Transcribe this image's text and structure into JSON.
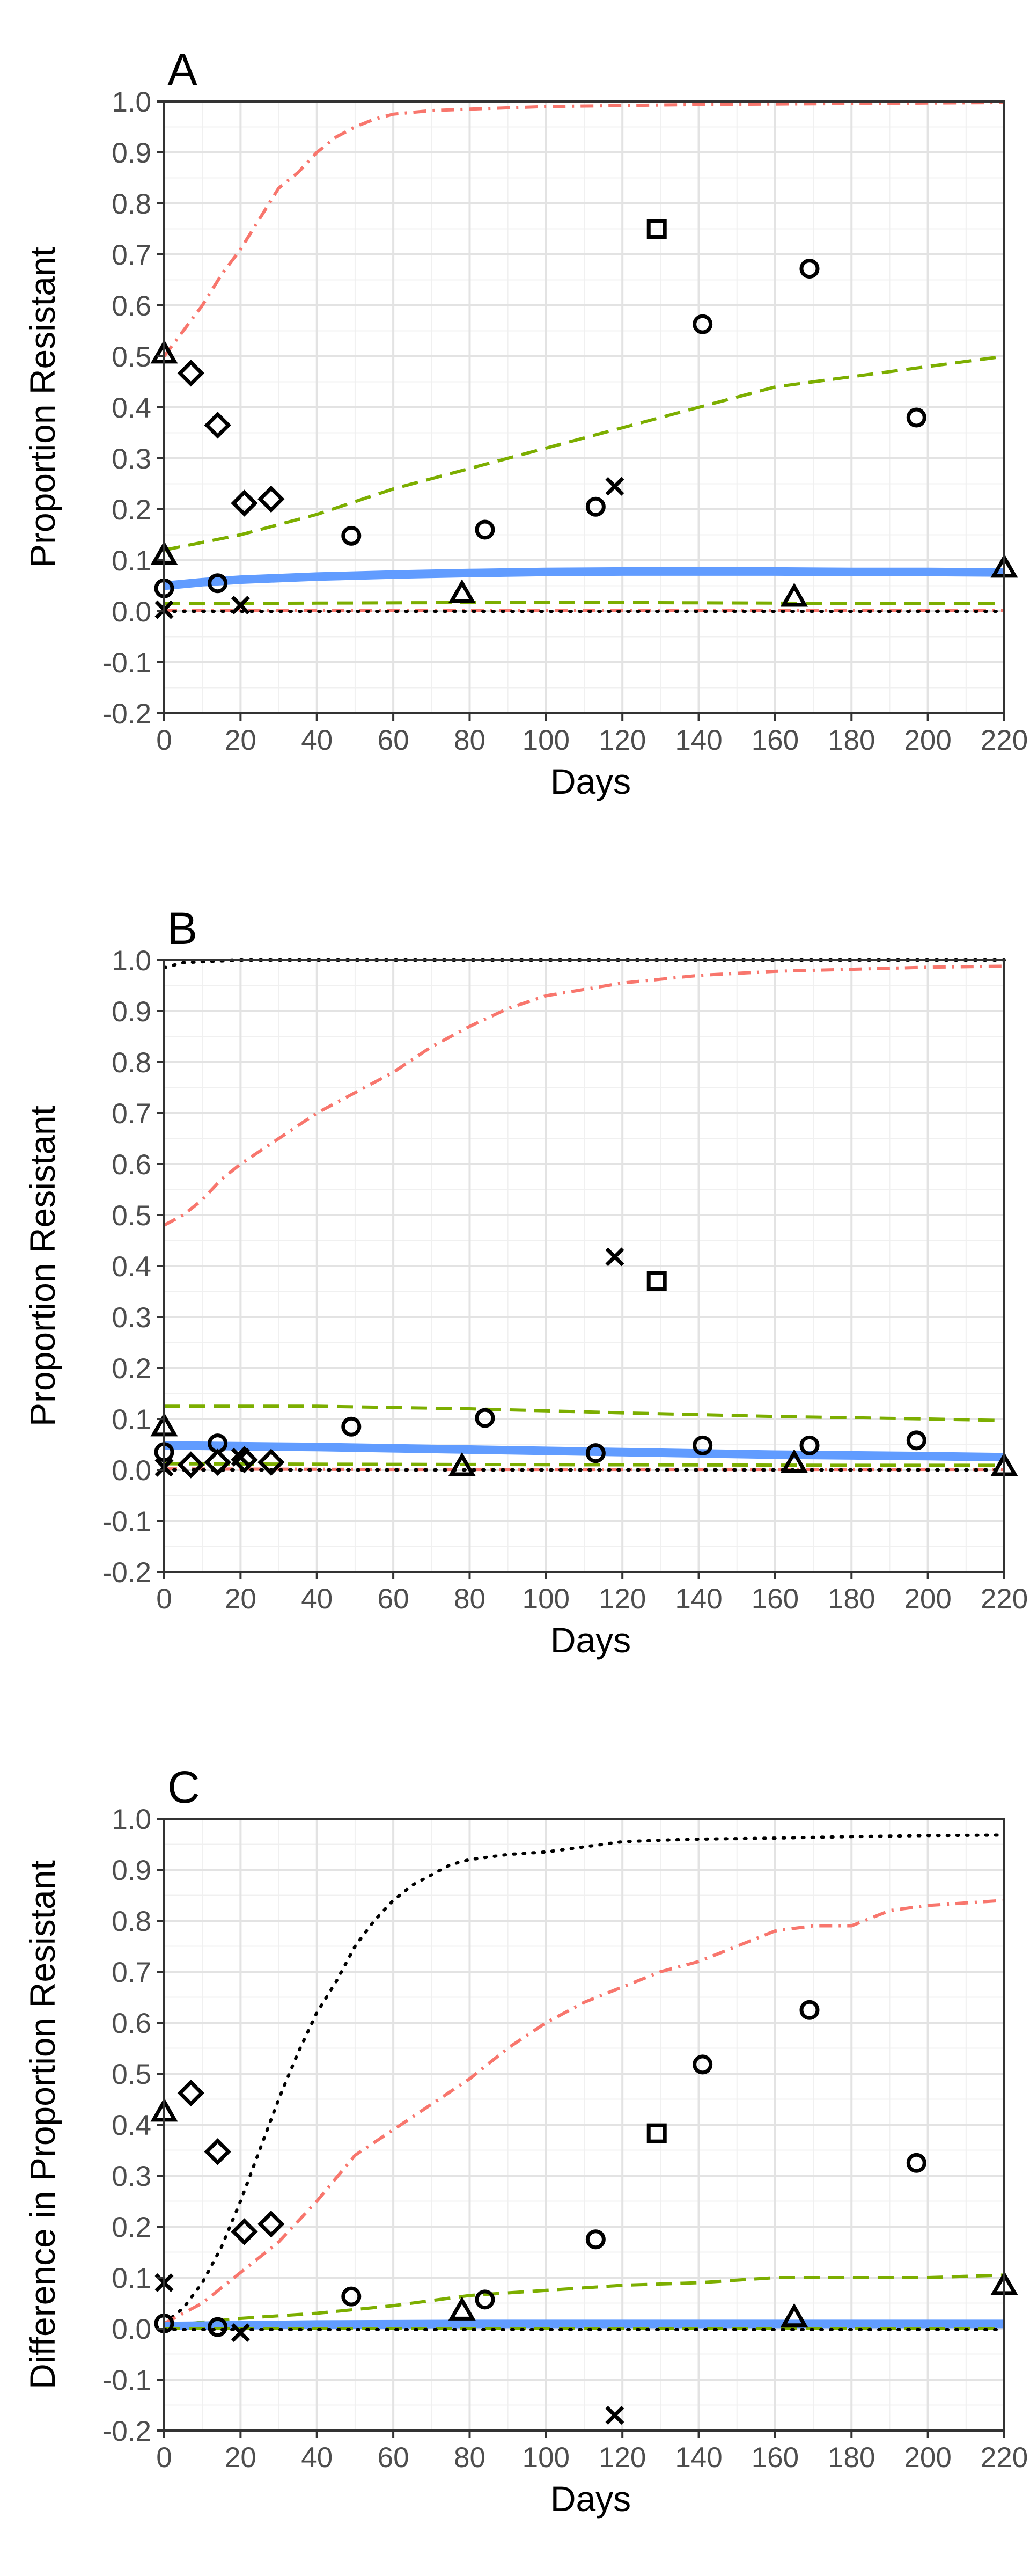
{
  "chart_data": [
    {
      "type": "line",
      "panel": "A",
      "xlabel": "Days",
      "ylabel": "Proportion Resistant",
      "xlim": [
        0,
        220
      ],
      "ylim": [
        -0.2,
        1.0
      ],
      "xticks": [
        0,
        20,
        40,
        60,
        80,
        100,
        120,
        140,
        160,
        180,
        200,
        220
      ],
      "yticks": [
        -0.2,
        -0.1,
        0.0,
        0.1,
        0.2,
        0.3,
        0.4,
        0.5,
        0.6,
        0.7,
        0.8,
        0.9,
        1.0
      ],
      "grid": true,
      "series": [
        {
          "style": "dotted-black",
          "color": "#000000",
          "x": [
            0,
            20,
            60,
            100,
            140,
            180,
            220
          ],
          "y": [
            1.0,
            1.0,
            1.0,
            1.0,
            1.0,
            1.0,
            1.0
          ]
        },
        {
          "style": "dotdash-red",
          "color": "#F8766D",
          "x": [
            0,
            5,
            10,
            15,
            20,
            25,
            30,
            35,
            40,
            45,
            50,
            55,
            60,
            70,
            80,
            100,
            120,
            140,
            160,
            180,
            200,
            220
          ],
          "y": [
            0.5,
            0.55,
            0.6,
            0.66,
            0.71,
            0.77,
            0.83,
            0.86,
            0.9,
            0.93,
            0.95,
            0.965,
            0.975,
            0.982,
            0.985,
            0.99,
            0.992,
            0.994,
            0.995,
            0.996,
            0.997,
            0.998
          ]
        },
        {
          "style": "dashed-green",
          "color": "#7CAE00",
          "x": [
            0,
            20,
            40,
            60,
            80,
            100,
            120,
            140,
            160,
            180,
            200,
            220
          ],
          "y": [
            0.12,
            0.15,
            0.19,
            0.24,
            0.28,
            0.32,
            0.36,
            0.4,
            0.44,
            0.46,
            0.48,
            0.5
          ]
        },
        {
          "style": "solid-blue",
          "color": "#619CFF",
          "x": [
            0,
            10,
            20,
            40,
            60,
            80,
            100,
            120,
            140,
            160,
            180,
            200,
            220
          ],
          "y": [
            0.05,
            0.057,
            0.062,
            0.068,
            0.072,
            0.075,
            0.077,
            0.078,
            0.078,
            0.078,
            0.077,
            0.077,
            0.076
          ]
        },
        {
          "style": "dashed-green",
          "color": "#7CAE00",
          "x": [
            0,
            40,
            80,
            120,
            160,
            200,
            220
          ],
          "y": [
            0.015,
            0.016,
            0.017,
            0.017,
            0.016,
            0.015,
            0.015
          ]
        },
        {
          "style": "dotdash-red",
          "color": "#F8766D",
          "x": [
            0,
            60,
            120,
            180,
            220
          ],
          "y": [
            0.002,
            0.002,
            0.002,
            0.002,
            0.002
          ]
        },
        {
          "style": "dotted-black",
          "color": "#000000",
          "x": [
            0,
            60,
            120,
            180,
            220
          ],
          "y": [
            0.0,
            0.0,
            0.0,
            0.0,
            0.0
          ]
        }
      ],
      "points": [
        {
          "shape": "circle",
          "x": 0,
          "y": 0.045
        },
        {
          "shape": "circle",
          "x": 14,
          "y": 0.055
        },
        {
          "shape": "circle",
          "x": 49,
          "y": 0.148
        },
        {
          "shape": "circle",
          "x": 84,
          "y": 0.16
        },
        {
          "shape": "circle",
          "x": 113,
          "y": 0.205
        },
        {
          "shape": "circle",
          "x": 141,
          "y": 0.563
        },
        {
          "shape": "circle",
          "x": 169,
          "y": 0.672
        },
        {
          "shape": "circle",
          "x": 197,
          "y": 0.38
        },
        {
          "shape": "diamond",
          "x": 7,
          "y": 0.467
        },
        {
          "shape": "diamond",
          "x": 14,
          "y": 0.365
        },
        {
          "shape": "diamond",
          "x": 21,
          "y": 0.212
        },
        {
          "shape": "diamond",
          "x": 28,
          "y": 0.22
        },
        {
          "shape": "triangle",
          "x": 0,
          "y": 0.11
        },
        {
          "shape": "triangle",
          "x": 0,
          "y": 0.505
        },
        {
          "shape": "triangle",
          "x": 78,
          "y": 0.035
        },
        {
          "shape": "triangle",
          "x": 165,
          "y": 0.028
        },
        {
          "shape": "triangle",
          "x": 220,
          "y": 0.085
        },
        {
          "shape": "square",
          "x": 129,
          "y": 0.75
        },
        {
          "shape": "cross",
          "x": 0,
          "y": 0.003
        },
        {
          "shape": "cross",
          "x": 20,
          "y": 0.012
        },
        {
          "shape": "cross",
          "x": 118,
          "y": 0.245
        }
      ]
    },
    {
      "type": "line",
      "panel": "B",
      "xlabel": "Days",
      "ylabel": "Proportion Resistant",
      "xlim": [
        0,
        220
      ],
      "ylim": [
        -0.2,
        1.0
      ],
      "xticks": [
        0,
        20,
        40,
        60,
        80,
        100,
        120,
        140,
        160,
        180,
        200,
        220
      ],
      "yticks": [
        -0.2,
        -0.1,
        0.0,
        0.1,
        0.2,
        0.3,
        0.4,
        0.5,
        0.6,
        0.7,
        0.8,
        0.9,
        1.0
      ],
      "grid": true,
      "series": [
        {
          "style": "dotted-black",
          "color": "#000000",
          "x": [
            0,
            5,
            20,
            60,
            100,
            140,
            180,
            220
          ],
          "y": [
            0.985,
            0.995,
            1.0,
            1.0,
            1.0,
            1.0,
            1.0,
            1.0
          ]
        },
        {
          "style": "dotdash-red",
          "color": "#F8766D",
          "x": [
            0,
            5,
            10,
            15,
            20,
            30,
            40,
            50,
            60,
            70,
            80,
            90,
            100,
            120,
            140,
            160,
            180,
            200,
            220
          ],
          "y": [
            0.48,
            0.5,
            0.53,
            0.57,
            0.6,
            0.65,
            0.7,
            0.74,
            0.78,
            0.83,
            0.87,
            0.905,
            0.93,
            0.955,
            0.97,
            0.978,
            0.982,
            0.986,
            0.988
          ]
        },
        {
          "style": "dashed-green",
          "color": "#7CAE00",
          "x": [
            0,
            40,
            80,
            120,
            160,
            200,
            220
          ],
          "y": [
            0.125,
            0.125,
            0.12,
            0.112,
            0.105,
            0.1,
            0.097
          ]
        },
        {
          "style": "solid-blue",
          "color": "#619CFF",
          "x": [
            0,
            40,
            80,
            120,
            160,
            200,
            220
          ],
          "y": [
            0.048,
            0.045,
            0.04,
            0.035,
            0.03,
            0.027,
            0.025
          ]
        },
        {
          "style": "dashed-green",
          "color": "#7CAE00",
          "x": [
            0,
            60,
            120,
            180,
            220
          ],
          "y": [
            0.012,
            0.011,
            0.01,
            0.009,
            0.009
          ]
        },
        {
          "style": "dotdash-red",
          "color": "#F8766D",
          "x": [
            0,
            60,
            120,
            180,
            220
          ],
          "y": [
            0.002,
            0.001,
            0.001,
            0.001,
            0.001
          ]
        },
        {
          "style": "dotted-black",
          "color": "#000000",
          "x": [
            0,
            60,
            120,
            180,
            220
          ],
          "y": [
            0.0,
            0.0,
            0.0,
            0.0,
            0.0
          ]
        }
      ],
      "points": [
        {
          "shape": "circle",
          "x": 0,
          "y": 0.035
        },
        {
          "shape": "circle",
          "x": 14,
          "y": 0.052
        },
        {
          "shape": "circle",
          "x": 49,
          "y": 0.085
        },
        {
          "shape": "circle",
          "x": 84,
          "y": 0.102
        },
        {
          "shape": "circle",
          "x": 113,
          "y": 0.033
        },
        {
          "shape": "circle",
          "x": 141,
          "y": 0.048
        },
        {
          "shape": "circle",
          "x": 169,
          "y": 0.048
        },
        {
          "shape": "circle",
          "x": 197,
          "y": 0.058
        },
        {
          "shape": "diamond",
          "x": 7,
          "y": 0.01
        },
        {
          "shape": "diamond",
          "x": 14,
          "y": 0.015
        },
        {
          "shape": "diamond",
          "x": 21,
          "y": 0.02
        },
        {
          "shape": "diamond",
          "x": 28,
          "y": 0.015
        },
        {
          "shape": "triangle",
          "x": 0,
          "y": 0.085
        },
        {
          "shape": "triangle",
          "x": 78,
          "y": 0.007
        },
        {
          "shape": "triangle",
          "x": 165,
          "y": 0.013
        },
        {
          "shape": "triangle",
          "x": 220,
          "y": 0.007
        },
        {
          "shape": "square",
          "x": 129,
          "y": 0.37
        },
        {
          "shape": "cross",
          "x": 0,
          "y": 0.005
        },
        {
          "shape": "cross",
          "x": 20,
          "y": 0.025
        },
        {
          "shape": "cross",
          "x": 118,
          "y": 0.418
        }
      ]
    },
    {
      "type": "line",
      "panel": "C",
      "xlabel": "Days",
      "ylabel": "Difference in Proportion Resistant",
      "xlim": [
        0,
        220
      ],
      "ylim": [
        -0.2,
        1.0
      ],
      "xticks": [
        0,
        20,
        40,
        60,
        80,
        100,
        120,
        140,
        160,
        180,
        200,
        220
      ],
      "yticks": [
        -0.2,
        -0.1,
        0.0,
        0.1,
        0.2,
        0.3,
        0.4,
        0.5,
        0.6,
        0.7,
        0.8,
        0.9,
        1.0
      ],
      "grid": true,
      "series": [
        {
          "style": "dotted-black",
          "color": "#000000",
          "x": [
            0,
            5,
            10,
            15,
            20,
            25,
            30,
            35,
            40,
            45,
            50,
            55,
            60,
            65,
            70,
            75,
            80,
            90,
            100,
            110,
            120,
            130,
            140,
            160,
            180,
            200,
            220
          ],
          "y": [
            0.01,
            0.04,
            0.09,
            0.16,
            0.25,
            0.35,
            0.45,
            0.54,
            0.62,
            0.68,
            0.75,
            0.8,
            0.84,
            0.87,
            0.89,
            0.91,
            0.92,
            0.93,
            0.935,
            0.945,
            0.955,
            0.958,
            0.96,
            0.962,
            0.965,
            0.967,
            0.968
          ]
        },
        {
          "style": "dotdash-red",
          "color": "#F8766D",
          "x": [
            0,
            10,
            20,
            30,
            40,
            50,
            60,
            70,
            80,
            90,
            100,
            110,
            120,
            130,
            140,
            150,
            160,
            170,
            180,
            190,
            200,
            210,
            220
          ],
          "y": [
            0.01,
            0.05,
            0.11,
            0.17,
            0.25,
            0.34,
            0.39,
            0.44,
            0.49,
            0.55,
            0.6,
            0.64,
            0.67,
            0.7,
            0.72,
            0.75,
            0.78,
            0.79,
            0.79,
            0.82,
            0.83,
            0.835,
            0.84
          ]
        },
        {
          "style": "dashed-green",
          "color": "#7CAE00",
          "x": [
            0,
            20,
            40,
            60,
            80,
            100,
            120,
            140,
            160,
            180,
            200,
            220
          ],
          "y": [
            0.005,
            0.02,
            0.03,
            0.045,
            0.065,
            0.075,
            0.085,
            0.09,
            0.1,
            0.1,
            0.1,
            0.105
          ]
        },
        {
          "style": "solid-blue",
          "color": "#619CFF",
          "x": [
            0,
            40,
            80,
            120,
            160,
            200,
            220
          ],
          "y": [
            0.005,
            0.008,
            0.009,
            0.009,
            0.009,
            0.009,
            0.009
          ]
        },
        {
          "style": "dashed-green",
          "color": "#7CAE00",
          "x": [
            0,
            60,
            120,
            180,
            220
          ],
          "y": [
            0.0,
            0.0,
            0.0,
            0.0,
            0.0
          ]
        },
        {
          "style": "dotted-black",
          "color": "#000000",
          "x": [
            0,
            60,
            120,
            180,
            220
          ],
          "y": [
            -0.002,
            -0.002,
            -0.002,
            -0.002,
            -0.002
          ]
        }
      ],
      "points": [
        {
          "shape": "circle",
          "x": 0,
          "y": 0.01
        },
        {
          "shape": "circle",
          "x": 14,
          "y": 0.003
        },
        {
          "shape": "circle",
          "x": 49,
          "y": 0.063
        },
        {
          "shape": "circle",
          "x": 84,
          "y": 0.057
        },
        {
          "shape": "circle",
          "x": 113,
          "y": 0.175
        },
        {
          "shape": "circle",
          "x": 141,
          "y": 0.518
        },
        {
          "shape": "circle",
          "x": 169,
          "y": 0.625
        },
        {
          "shape": "circle",
          "x": 197,
          "y": 0.325
        },
        {
          "shape": "diamond",
          "x": 7,
          "y": 0.462
        },
        {
          "shape": "diamond",
          "x": 14,
          "y": 0.347
        },
        {
          "shape": "diamond",
          "x": 21,
          "y": 0.19
        },
        {
          "shape": "diamond",
          "x": 28,
          "y": 0.205
        },
        {
          "shape": "triangle",
          "x": 0,
          "y": 0.425
        },
        {
          "shape": "triangle",
          "x": 78,
          "y": 0.035
        },
        {
          "shape": "triangle",
          "x": 165,
          "y": 0.022
        },
        {
          "shape": "triangle",
          "x": 220,
          "y": 0.085
        },
        {
          "shape": "square",
          "x": 129,
          "y": 0.383
        },
        {
          "shape": "cross",
          "x": 0,
          "y": 0.09
        },
        {
          "shape": "cross",
          "x": 20,
          "y": -0.008
        },
        {
          "shape": "cross",
          "x": 118,
          "y": -0.17
        }
      ]
    }
  ]
}
